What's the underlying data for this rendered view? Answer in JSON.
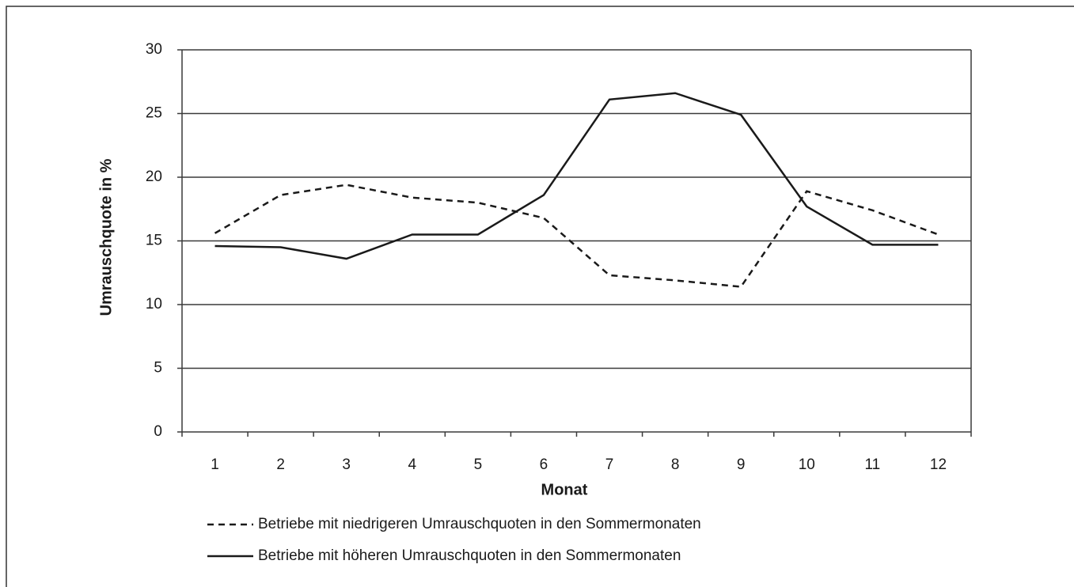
{
  "chart_data": {
    "type": "line",
    "x_label": "Monat",
    "y_label": "Umrauschquote in %",
    "categories": [
      "1",
      "2",
      "3",
      "4",
      "5",
      "6",
      "7",
      "8",
      "9",
      "10",
      "11",
      "12"
    ],
    "series": [
      {
        "name": "Betriebe mit niedrigeren Umrauschquoten in den Sommermonaten",
        "color": "#1a1a1a",
        "dash": "dashed",
        "values": [
          15.6,
          18.6,
          19.4,
          18.4,
          18.0,
          16.8,
          12.3,
          11.9,
          11.4,
          18.9,
          17.4,
          15.5
        ]
      },
      {
        "name": "Betriebe mit höheren Umrauschquoten in den Sommermonaten",
        "color": "#1a1a1a",
        "dash": "solid",
        "values": [
          14.6,
          14.5,
          13.6,
          15.5,
          15.5,
          18.6,
          26.1,
          26.6,
          24.9,
          17.7,
          14.7,
          14.7
        ]
      }
    ],
    "ylim": [
      0,
      30
    ],
    "yticks": [
      0,
      5,
      10,
      15,
      20,
      25,
      30
    ],
    "grid": true
  }
}
